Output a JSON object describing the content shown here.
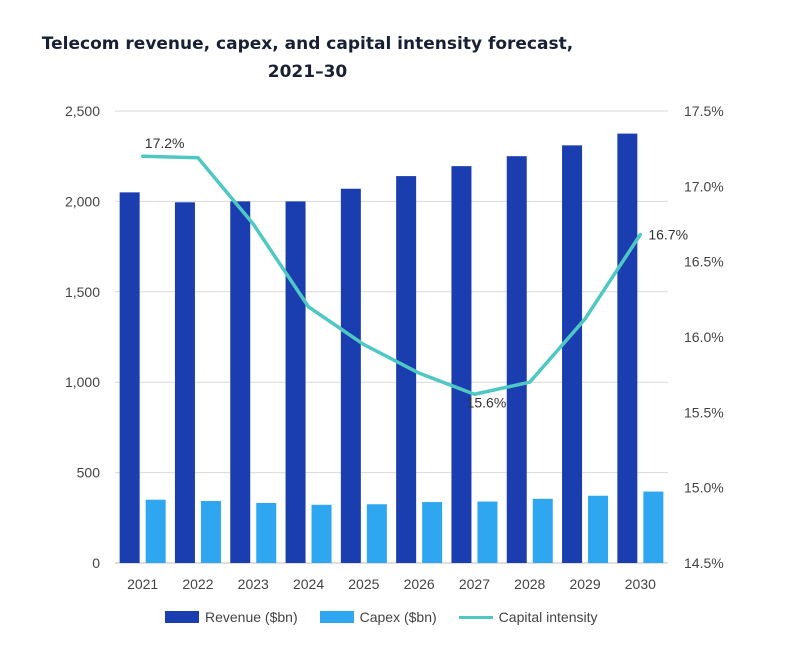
{
  "chart_data": {
    "type": "bar",
    "title_line1": "Telecom revenue, capex, and capital intensity forecast,",
    "title_line2": "2021–30",
    "categories": [
      "2021",
      "2022",
      "2023",
      "2024",
      "2025",
      "2026",
      "2027",
      "2028",
      "2029",
      "2030"
    ],
    "series": [
      {
        "name": "Revenue ($bn)",
        "kind": "bar",
        "axis": "left",
        "color": "#1a3eb0",
        "values": [
          2050,
          1995,
          2000,
          2000,
          2070,
          2140,
          2195,
          2250,
          2310,
          2375
        ]
      },
      {
        "name": "Capex ($bn)",
        "kind": "bar",
        "axis": "left",
        "color": "#2ea6f0",
        "values": [
          350,
          343,
          332,
          322,
          325,
          337,
          340,
          355,
          372,
          395
        ]
      },
      {
        "name": "Capital intensity",
        "kind": "line",
        "axis": "right",
        "color": "#4fc8c4",
        "values": [
          17.2,
          17.19,
          16.75,
          16.2,
          15.95,
          15.76,
          15.62,
          15.7,
          16.12,
          16.68
        ]
      }
    ],
    "data_labels": [
      {
        "series": "Capital intensity",
        "index": 0,
        "text": "17.2%"
      },
      {
        "series": "Capital intensity",
        "index": 6,
        "text": "15.6%"
      },
      {
        "series": "Capital intensity",
        "index": 9,
        "text": "16.7%"
      }
    ],
    "left_axis": {
      "min": 0,
      "max": 2500,
      "ticks": [
        0,
        500,
        1000,
        1500,
        2000,
        2500
      ],
      "tick_labels": [
        "0",
        "500",
        "1,000",
        "1,500",
        "2,000",
        "2,500"
      ]
    },
    "right_axis": {
      "min": 14.5,
      "max": 17.5,
      "ticks": [
        14.5,
        15.0,
        15.5,
        16.0,
        16.5,
        17.0,
        17.5
      ],
      "tick_labels": [
        "14.5%",
        "15.0%",
        "15.5%",
        "16.0%",
        "16.5%",
        "17.0%",
        "17.5%"
      ]
    },
    "grid": true,
    "legend_position": "bottom"
  }
}
